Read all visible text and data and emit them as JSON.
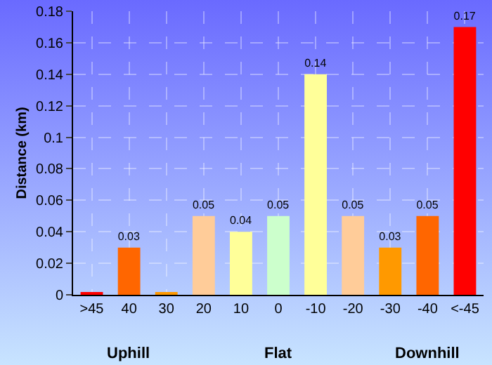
{
  "chart_data": {
    "type": "bar",
    "ylabel": "Distance (km)",
    "categories": [
      ">45",
      "40",
      "30",
      "20",
      "10",
      "0",
      "-10",
      "-20",
      "-30",
      "-40",
      "<-45"
    ],
    "values": [
      0.001,
      0.03,
      0.001,
      0.05,
      0.04,
      0.05,
      0.14,
      0.05,
      0.03,
      0.05,
      0.17
    ],
    "value_labels": [
      null,
      "0.03",
      null,
      "0.05",
      "0.04",
      "0.05",
      "0.14",
      "0.05",
      "0.03",
      "0.05",
      "0.17"
    ],
    "colors": [
      "#ff0000",
      "#ff6600",
      "#ff9900",
      "#ffcc99",
      "#ffff99",
      "#ccffcc",
      "#ffff99",
      "#ffcc99",
      "#ff9900",
      "#ff6600",
      "#ff0000"
    ],
    "ylim": [
      0,
      0.18
    ],
    "yticks": [
      0,
      0.02,
      0.04,
      0.06,
      0.08,
      0.1,
      0.12,
      0.14,
      0.16,
      0.18
    ],
    "grid": true,
    "annotations": [
      "Uphill",
      "Flat",
      "Downhill"
    ]
  }
}
